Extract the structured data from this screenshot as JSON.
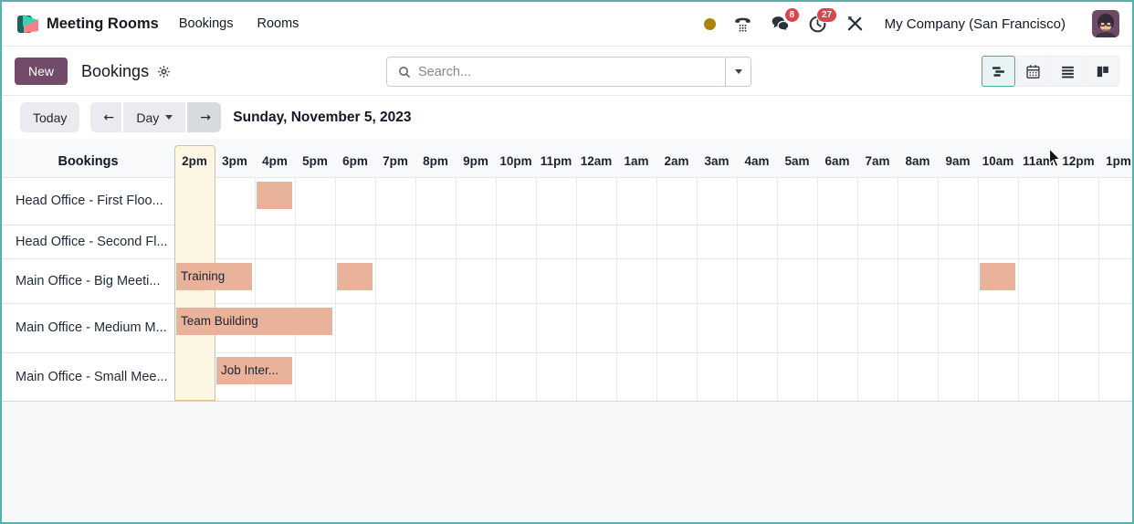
{
  "navbar": {
    "app_name": "Meeting Rooms",
    "menus": [
      {
        "label": "Bookings"
      },
      {
        "label": "Rooms"
      }
    ],
    "systray": {
      "messages_badge": "8",
      "activities_badge": "27",
      "company": "My Company (San Francisco)"
    }
  },
  "control_panel": {
    "new_button": "New",
    "breadcrumb": "Bookings",
    "search_placeholder": "Search...",
    "views": [
      "gantt",
      "calendar",
      "list",
      "kanban"
    ],
    "active_view": "gantt"
  },
  "gantt": {
    "today_button": "Today",
    "scale_button": "Day",
    "prev_arrow": "←",
    "next_arrow": "→",
    "date_title": "Sunday, November 5, 2023",
    "rows_header": "Bookings",
    "hours": [
      "2pm",
      "3pm",
      "4pm",
      "5pm",
      "6pm",
      "7pm",
      "8pm",
      "9pm",
      "10pm",
      "11pm",
      "12am",
      "1am",
      "2am",
      "3am",
      "4am",
      "5am",
      "6am",
      "7am",
      "8am",
      "9am",
      "10am",
      "11am",
      "12pm",
      "1pm"
    ],
    "current_hour": "2pm",
    "rows": [
      {
        "name": "Head Office - First Floo...",
        "bookings": [
          {
            "label": "",
            "start": 2,
            "duration": 1
          }
        ]
      },
      {
        "name": "Head Office - Second Fl...",
        "bookings": []
      },
      {
        "name": "Main Office - Big Meeti...",
        "bookings": [
          {
            "label": "Training",
            "start": 0,
            "duration": 2
          },
          {
            "label": "",
            "start": 4,
            "duration": 1
          },
          {
            "label": "",
            "start": 20,
            "duration": 1
          }
        ]
      },
      {
        "name": "Main Office - Medium M...",
        "bookings": [
          {
            "label": "Team Building",
            "start": 0,
            "duration": 4
          }
        ]
      },
      {
        "name": "Main Office - Small Mee...",
        "bookings": [
          {
            "label": "Job Inter...",
            "start": 1,
            "duration": 2
          }
        ]
      }
    ]
  },
  "colors": {
    "accent": "#714B67",
    "window_border": "#56b3ab",
    "bar": "#e9b29a",
    "current_column_bg": "#fdf6e3",
    "current_column_border": "#e4bd83",
    "badge": "#d9444f",
    "status_dot": "#ad830e",
    "active_view_border": "#45aba3",
    "active_view_bg": "#e8f3f3"
  }
}
